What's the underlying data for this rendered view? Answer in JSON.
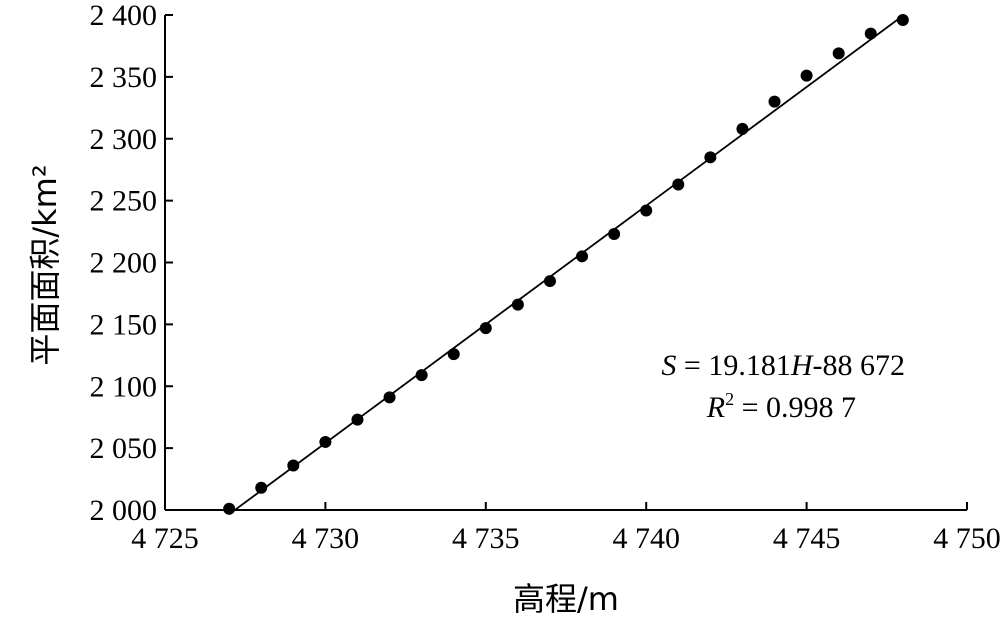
{
  "chart_data": {
    "type": "scatter",
    "xlabel": "高程/m",
    "ylabel": "平面面积/km²",
    "xlim": [
      4725,
      4750
    ],
    "ylim": [
      2000,
      2400
    ],
    "x_ticks": [
      4725,
      4730,
      4735,
      4740,
      4745,
      4750
    ],
    "x_tick_labels": [
      "4 725",
      "4 730",
      "4 735",
      "4 740",
      "4 745",
      "4 750"
    ],
    "y_ticks": [
      2000,
      2050,
      2100,
      2150,
      2200,
      2250,
      2300,
      2350,
      2400
    ],
    "y_tick_labels": [
      "2 000",
      "2 050",
      "2 100",
      "2 150",
      "2 200",
      "2 250",
      "2 300",
      "2 350",
      "2 400"
    ],
    "grid": false,
    "series": [
      {
        "x": [
          4727,
          4728,
          4729,
          4730,
          4731,
          4732,
          4733,
          4734,
          4735,
          4736,
          4737,
          4738,
          4739,
          4740,
          4741,
          4742,
          4743,
          4744,
          4745,
          4746,
          4747,
          4748
        ],
        "y": [
          2001,
          2018,
          2036,
          2055,
          2073,
          2091,
          2109,
          2126,
          2147,
          2166,
          2185,
          2205,
          2223,
          2242,
          2263,
          2285,
          2308,
          2330,
          2351,
          2369,
          2385,
          2396
        ],
        "marker": "circle",
        "color": "#000000"
      }
    ],
    "fit_line": {
      "slope": 19.181,
      "intercept": -88672,
      "x_range": [
        4727,
        4748
      ]
    },
    "annotation": {
      "line1": {
        "var": "S",
        "mid": " = 19.181",
        "var2": "H",
        "tail": "-88 672"
      },
      "line2": {
        "var": "R",
        "sup": "2",
        "tail": " = 0.998 7"
      }
    }
  }
}
